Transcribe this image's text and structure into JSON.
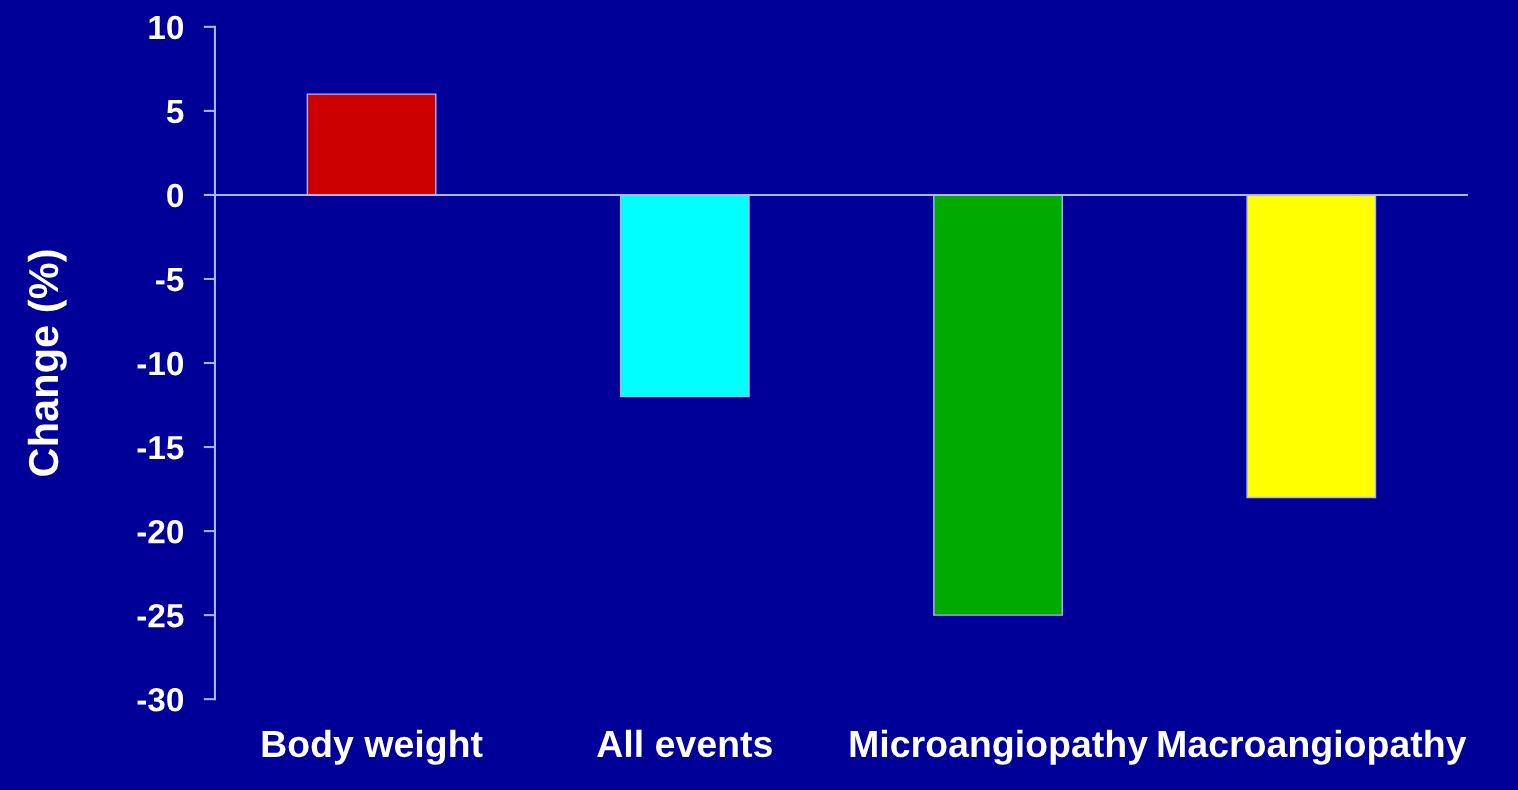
{
  "chart_data": {
    "type": "bar",
    "ylabel": "Change (%)",
    "categories": [
      "Body weight",
      "All events",
      "Microangiopathy",
      "Macroangiopathy"
    ],
    "values": [
      6,
      -12,
      -25,
      -18
    ],
    "colors": [
      "#cc0000",
      "#00ffff",
      "#00aa00",
      "#ffff00"
    ],
    "ref_lines": [
      {
        "axis": "y",
        "value": 0,
        "color": "#aab4ff"
      }
    ],
    "ylim": [
      -30,
      10
    ],
    "yticks": [
      -30,
      -25,
      -20,
      -15,
      -10,
      -5,
      0,
      5,
      10
    ],
    "grid": false
  }
}
